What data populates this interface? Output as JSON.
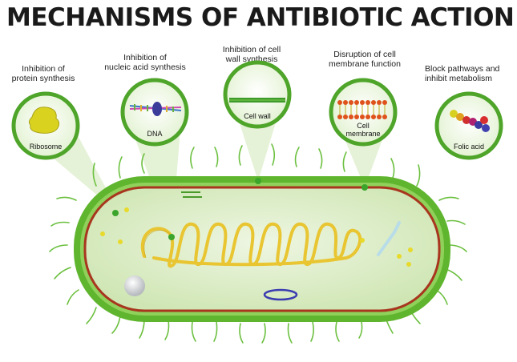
{
  "title": "MECHANISMS OF ANTIBIOTIC ACTION",
  "mechanisms": [
    {
      "line1": "Inhibition of",
      "line2": "protein synthesis",
      "target": "Ribosome"
    },
    {
      "line1": "Inhibition of",
      "line2": "nucleic acid synthesis",
      "target": "DNA"
    },
    {
      "line1": "Inhibition of cell",
      "line2": "wall synthesis",
      "target": "Cell wall"
    },
    {
      "line1": "Disruption of cell",
      "line2": "membrane function",
      "target": "Cell",
      "target2": "membrane"
    },
    {
      "line1": "Block pathways and",
      "line2": "inhibit metabolism",
      "target": "Folic acid"
    }
  ],
  "colors": {
    "cell_wall": "#5fb52e",
    "membrane": "#a8361f",
    "cytoplasm": "#d8ecc2",
    "dna": "#e8c531",
    "circle_border": "#4ea52a"
  }
}
